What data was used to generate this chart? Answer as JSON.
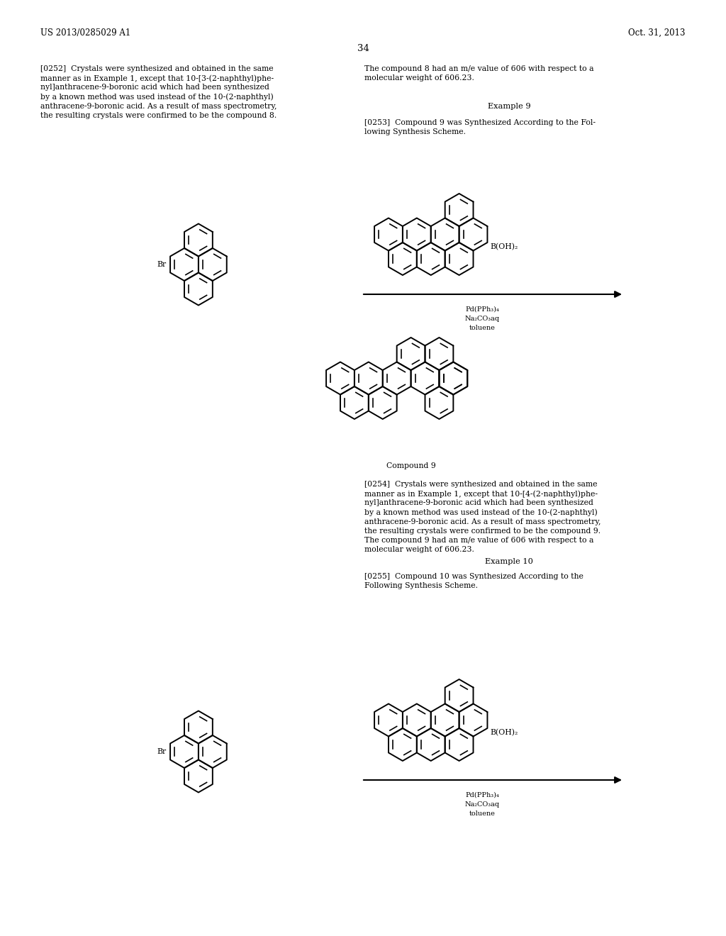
{
  "background_color": "#ffffff",
  "page_header_left": "US 2013/0285029 A1",
  "page_header_right": "Oct. 31, 2013",
  "page_number": "34",
  "left_col_para0252": [
    "[0252]  Crystals were synthesized and obtained in the same",
    "manner as in Example 1, except that 10-[3-(2-naphthyl)phe-",
    "nyl]anthracene-9-boronic acid which had been synthesized",
    "by a known method was used instead of the 10-(2-naphthyl)",
    "anthracene-9-boronic acid. As a result of mass spectrometry,",
    "the resulting crystals were confirmed to be the compound 8."
  ],
  "right_col_top": [
    "The compound 8 had an m/e value of 606 with respect to a",
    "molecular weight of 606.23."
  ],
  "example9_heading": "Example 9",
  "para0253": [
    "[0253]  Compound 9 was Synthesized According to the Fol-",
    "lowing Synthesis Scheme."
  ],
  "compound9_label": "Compound 9",
  "para0254": [
    "[0254]  Crystals were synthesized and obtained in the same",
    "manner as in Example 1, except that 10-[4-(2-naphthyl)phe-",
    "nyl]anthracene-9-boronic acid which had been synthesized",
    "by a known method was used instead of the 10-(2-naphthyl)",
    "anthracene-9-boronic acid. As a result of mass spectrometry,",
    "the resulting crystals were confirmed to be the compound 9.",
    "The compound 9 had an m/e value of 606 with respect to a",
    "molecular weight of 606.23."
  ],
  "example10_heading": "Example 10",
  "para0255": [
    "[0255]  Compound 10 was Synthesized According to the",
    "Following Synthesis Scheme."
  ],
  "br_label": "Br",
  "boh2_label": "B(OH)₂",
  "cat1": "Pd(PPh₃)₄",
  "cat2": "Na₂CO₃aq",
  "cat3": "toluene",
  "text_fontsize": 7.8,
  "heading_fontsize": 8.2,
  "label_fontsize": 7.8
}
